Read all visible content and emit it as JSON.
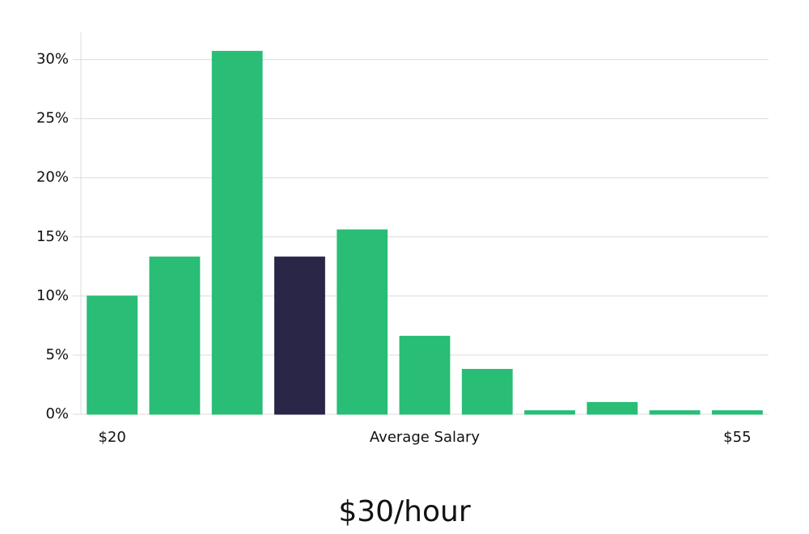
{
  "chart_data": {
    "type": "bar",
    "xlabel": "Average Salary",
    "annotation": "$30/hour",
    "categories": [
      "$20",
      null,
      null,
      null,
      null,
      null,
      null,
      null,
      null,
      null,
      "$55"
    ],
    "values": [
      10,
      13.3,
      30.7,
      13.3,
      15.6,
      6.6,
      3.8,
      0.3,
      1,
      0.3,
      0.3
    ],
    "colors": [
      "#29bd76",
      "#29bd76",
      "#29bd76",
      "#2a2647",
      "#29bd76",
      "#29bd76",
      "#29bd76",
      "#29bd76",
      "#29bd76",
      "#29bd76",
      "#29bd76"
    ],
    "ylim": [
      0,
      32.3
    ],
    "yticks": [
      {
        "value": 0,
        "label": "0%"
      },
      {
        "value": 5,
        "label": "5%"
      },
      {
        "value": 10,
        "label": "10%"
      },
      {
        "value": 15,
        "label": "15%"
      },
      {
        "value": 20,
        "label": "20%"
      },
      {
        "value": 25,
        "label": "25%"
      },
      {
        "value": 30,
        "label": "30%"
      }
    ],
    "grid": true
  }
}
